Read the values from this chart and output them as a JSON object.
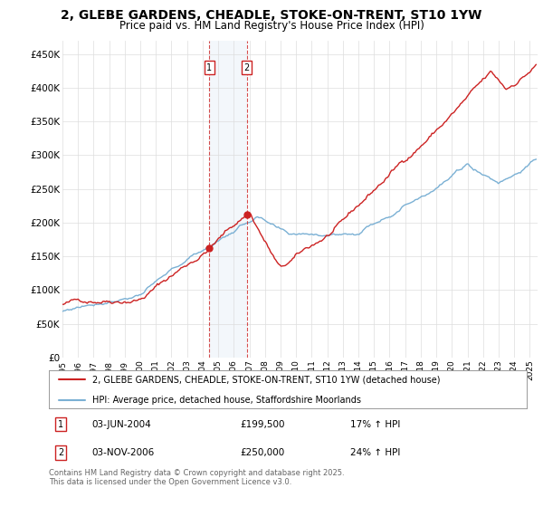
{
  "title": "2, GLEBE GARDENS, CHEADLE, STOKE-ON-TRENT, ST10 1YW",
  "subtitle": "Price paid vs. HM Land Registry's House Price Index (HPI)",
  "title_fontsize": 10,
  "subtitle_fontsize": 8.5,
  "ylabel_ticks": [
    "£0",
    "£50K",
    "£100K",
    "£150K",
    "£200K",
    "£250K",
    "£300K",
    "£350K",
    "£400K",
    "£450K"
  ],
  "ytick_values": [
    0,
    50000,
    100000,
    150000,
    200000,
    250000,
    300000,
    350000,
    400000,
    450000
  ],
  "ylim": [
    0,
    470000
  ],
  "xlim_start": 1995.0,
  "xlim_end": 2025.5,
  "hpi_color": "#7ab0d4",
  "price_color": "#cc2222",
  "purchase1_date": 2004.42,
  "purchase1_price": 199500,
  "purchase2_date": 2006.83,
  "purchase2_price": 250000,
  "legend_line1": "2, GLEBE GARDENS, CHEADLE, STOKE-ON-TRENT, ST10 1YW (detached house)",
  "legend_line2": "HPI: Average price, detached house, Staffordshire Moorlands",
  "footer": "Contains HM Land Registry data © Crown copyright and database right 2025.\nThis data is licensed under the Open Government Licence v3.0.",
  "background_color": "#ffffff",
  "grid_color": "#dddddd",
  "shading_color": "#d0e0f0",
  "marker_color": "#cc2222"
}
